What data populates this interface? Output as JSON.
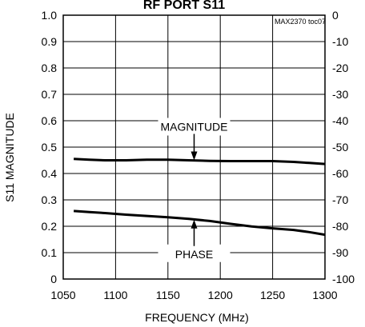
{
  "chart_data": {
    "type": "line",
    "title": "RF PORT S11",
    "tag": "MAX2370 toc07",
    "xlabel": "FREQUENCY (MHz)",
    "ylabel": "S11 MAGNITUDE",
    "xlim": [
      1050,
      1300
    ],
    "ylim": [
      0,
      1.0
    ],
    "y2lim": [
      -100,
      0
    ],
    "x_ticks": [
      1050,
      1100,
      1150,
      1200,
      1250,
      1300
    ],
    "y_ticks": [
      "0",
      "0.1",
      "0.2",
      "0.3",
      "0.4",
      "0.5",
      "0.6",
      "0.7",
      "0.8",
      "0.9",
      "1.0"
    ],
    "y2_ticks": [
      "-100",
      "-90",
      "-80",
      "-70",
      "-60",
      "-50",
      "-40",
      "-30",
      "-20",
      "-10",
      "0"
    ],
    "grid": true,
    "series": [
      {
        "name": "MAGNITUDE",
        "axis": "left",
        "x": [
          1060,
          1075,
          1090,
          1110,
          1130,
          1150,
          1170,
          1190,
          1210,
          1230,
          1250,
          1270,
          1285,
          1300
        ],
        "y": [
          0.455,
          0.452,
          0.45,
          0.45,
          0.452,
          0.452,
          0.45,
          0.448,
          0.447,
          0.447,
          0.447,
          0.444,
          0.44,
          0.436
        ]
      },
      {
        "name": "PHASE",
        "axis": "right",
        "x": [
          1060,
          1075,
          1090,
          1110,
          1130,
          1150,
          1170,
          1190,
          1210,
          1230,
          1250,
          1270,
          1285,
          1300
        ],
        "y": [
          -74.2,
          -74.6,
          -75.0,
          -75.6,
          -76.1,
          -76.6,
          -77.2,
          -78.0,
          -79.1,
          -80.1,
          -80.8,
          -81.4,
          -82.2,
          -83.2
        ]
      }
    ],
    "annotations": [
      {
        "text": "MAGNITUDE",
        "arrow_x": 1175,
        "arrow_to": 0.45,
        "arrow_from": 0.55
      },
      {
        "text": "PHASE",
        "arrow_x": 1175,
        "arrow_to": 0.225,
        "arrow_from": 0.125
      }
    ]
  }
}
